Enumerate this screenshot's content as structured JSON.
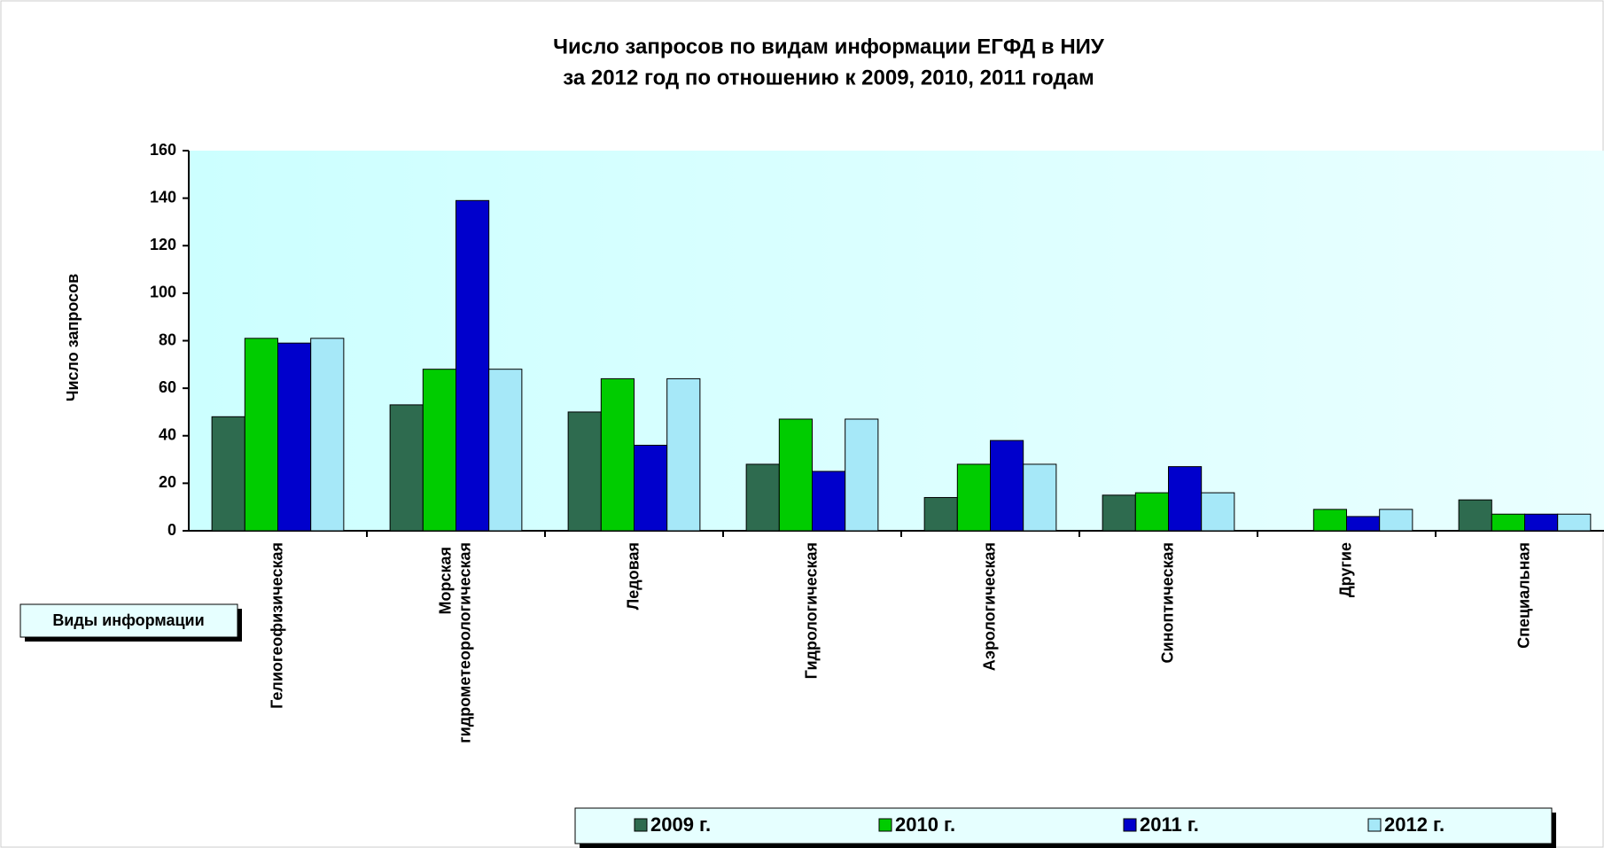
{
  "chart_data": {
    "type": "bar",
    "title": "Число запросов по видам информации ЕГФД  в НИУ",
    "subtitle": "за 2012 год  по отношению к 2009, 2010, 2011 годам",
    "y_label": "Число запросов",
    "x_label": "Виды информации",
    "categories": [
      "Гелиогеофизическая",
      "Морская гидрометеорологическая",
      "Ледовая",
      "Гидрологическая",
      "Аэрологическая",
      "Синоптическая",
      "Другие",
      "Специальная"
    ],
    "series": [
      {
        "name": "2009 г.",
        "color": "#2e6b4f",
        "values": [
          48,
          53,
          50,
          28,
          14,
          15,
          0,
          13
        ]
      },
      {
        "name": "2010 г.",
        "color": "#00cc00",
        "values": [
          81,
          68,
          64,
          47,
          28,
          16,
          9,
          7
        ]
      },
      {
        "name": "2011 г.",
        "color": "#0000cc",
        "values": [
          79,
          139,
          36,
          25,
          38,
          27,
          6,
          7
        ]
      },
      {
        "name": "2012 г.",
        "color": "#a6e8f8",
        "values": [
          81,
          68,
          64,
          47,
          28,
          16,
          9,
          7
        ]
      }
    ],
    "ylim": [
      0,
      160
    ],
    "yticks": [
      0,
      20,
      40,
      60,
      80,
      100,
      120,
      140,
      160
    ],
    "grid": false
  }
}
